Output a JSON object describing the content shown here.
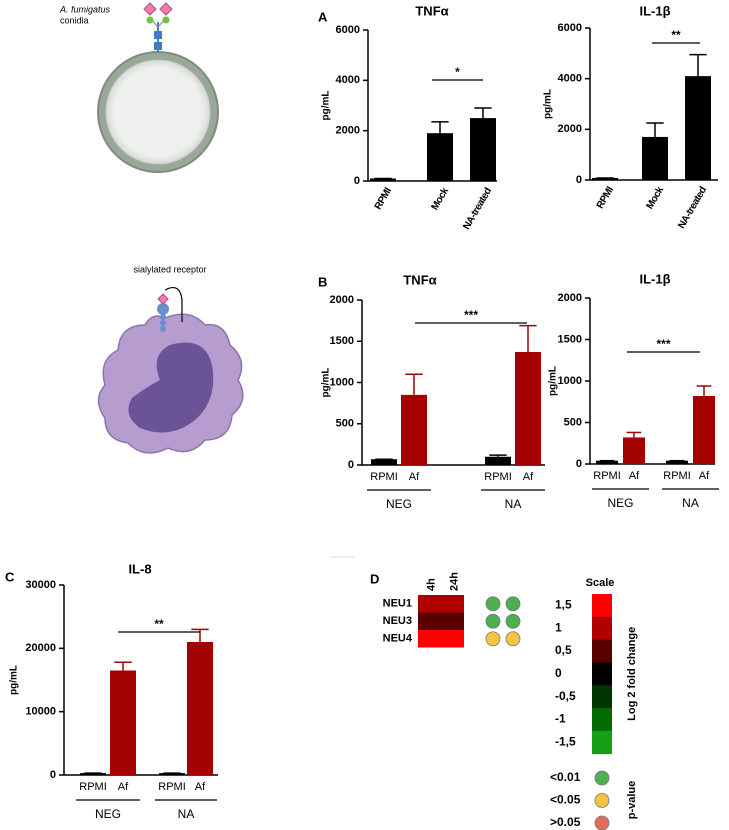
{
  "illustrations": {
    "conidia_species": "A. fumigatus",
    "conidia_label": "conidia",
    "receptor_label": "sialylated receptor"
  },
  "chart_data": [
    {
      "type": "bar",
      "panel": "A",
      "title": "TNFα",
      "ylabel": "pg/mL",
      "categories": [
        "RPMI",
        "Mock",
        "NA-treated"
      ],
      "values": [
        100,
        1900,
        2500
      ],
      "errors": [
        0,
        450,
        400
      ],
      "colors": [
        "#000000",
        "#000000",
        "#000000"
      ],
      "ylim": [
        0,
        6000
      ],
      "yticks": [
        0,
        2000,
        4000,
        6000
      ],
      "annotations": [
        {
          "text": "*",
          "from": 1,
          "to": 2
        }
      ]
    },
    {
      "type": "bar",
      "title": "IL-1β",
      "ylabel": "pg/mL",
      "categories": [
        "RPMI",
        "Mock",
        "NA-treated"
      ],
      "values": [
        80,
        1700,
        4100
      ],
      "errors": [
        0,
        550,
        850
      ],
      "colors": [
        "#000000",
        "#000000",
        "#000000"
      ],
      "ylim": [
        0,
        6000
      ],
      "yticks": [
        0,
        2000,
        4000,
        6000
      ],
      "annotations": [
        {
          "text": "**",
          "from": 1,
          "to": 2
        }
      ]
    },
    {
      "type": "bar",
      "panel": "B",
      "title": "TNFα",
      "ylabel": "pg/mL",
      "categories": [
        "RPMI",
        "Af",
        "RPMI",
        "Af"
      ],
      "groups": [
        "NEG",
        "NA"
      ],
      "values": [
        70,
        850,
        100,
        1370
      ],
      "errors": [
        0,
        250,
        20,
        320
      ],
      "colors": [
        "#000000",
        "#a30000",
        "#000000",
        "#a30000"
      ],
      "ylim": [
        0,
        2000
      ],
      "yticks": [
        0,
        500,
        1000,
        1500,
        2000
      ],
      "annotations": [
        {
          "text": "***",
          "from": 1,
          "to": 3
        }
      ]
    },
    {
      "type": "bar",
      "title": "IL-1β",
      "ylabel": "pg/mL",
      "categories": [
        "RPMI",
        "Af",
        "RPMI",
        "Af"
      ],
      "groups": [
        "NEG",
        "NA"
      ],
      "values": [
        40,
        320,
        40,
        820
      ],
      "errors": [
        0,
        60,
        0,
        120
      ],
      "colors": [
        "#000000",
        "#a30000",
        "#000000",
        "#a30000"
      ],
      "ylim": [
        0,
        2000
      ],
      "yticks": [
        0,
        500,
        1000,
        1500,
        2000
      ],
      "annotations": [
        {
          "text": "***",
          "from": 1,
          "to": 3
        }
      ]
    },
    {
      "type": "bar",
      "panel": "C",
      "title": "IL-8",
      "ylabel": "pg/mL",
      "categories": [
        "RPMI",
        "Af",
        "RPMI",
        "Af"
      ],
      "groups": [
        "NEG",
        "NA"
      ],
      "values": [
        300,
        16500,
        300,
        21000
      ],
      "errors": [
        0,
        1300,
        0,
        2000
      ],
      "colors": [
        "#000000",
        "#a30000",
        "#000000",
        "#a30000"
      ],
      "ylim": [
        0,
        30000
      ],
      "yticks": [
        0,
        10000,
        20000,
        30000
      ],
      "annotations": [
        {
          "text": "**",
          "from": 1,
          "to": 3
        }
      ]
    },
    {
      "type": "heatmap",
      "panel": "D",
      "rows": [
        "NEU1",
        "NEU3",
        "NEU4"
      ],
      "columns": [
        "4h",
        "24h"
      ],
      "values": [
        [
          1,
          1
        ],
        [
          0.5,
          0.5
        ],
        [
          1.5,
          1.5
        ]
      ],
      "pvalues": [
        [
          "<0.01",
          "<0.01"
        ],
        [
          "<0.01",
          "<0.01"
        ],
        [
          "<0.05",
          "<0.05"
        ]
      ],
      "scale_title": "Scale",
      "scale_label": "Log 2 fold change",
      "scale_ticks": [
        {
          "value": 1.5,
          "label": "1,5"
        },
        1,
        {
          "value": 0.5,
          "label": "0,5"
        },
        0,
        {
          "value": -0.5,
          "label": "-0,5"
        },
        -1,
        {
          "value": -1.5,
          "label": "-1,5"
        }
      ],
      "scale_colors": [
        "#ff0000",
        "#b00000",
        "#5a0000",
        "#000000",
        "#003500",
        "#006b00",
        "#16a016"
      ],
      "pvalue_title": "p-value",
      "pvalue_legend": [
        {
          "label": "<0.01",
          "color": "#4caf50"
        },
        {
          "label": "<0.05",
          "color": "#f5c542"
        },
        {
          "label": ">0.05",
          "color": "#e26a5f"
        }
      ]
    }
  ]
}
